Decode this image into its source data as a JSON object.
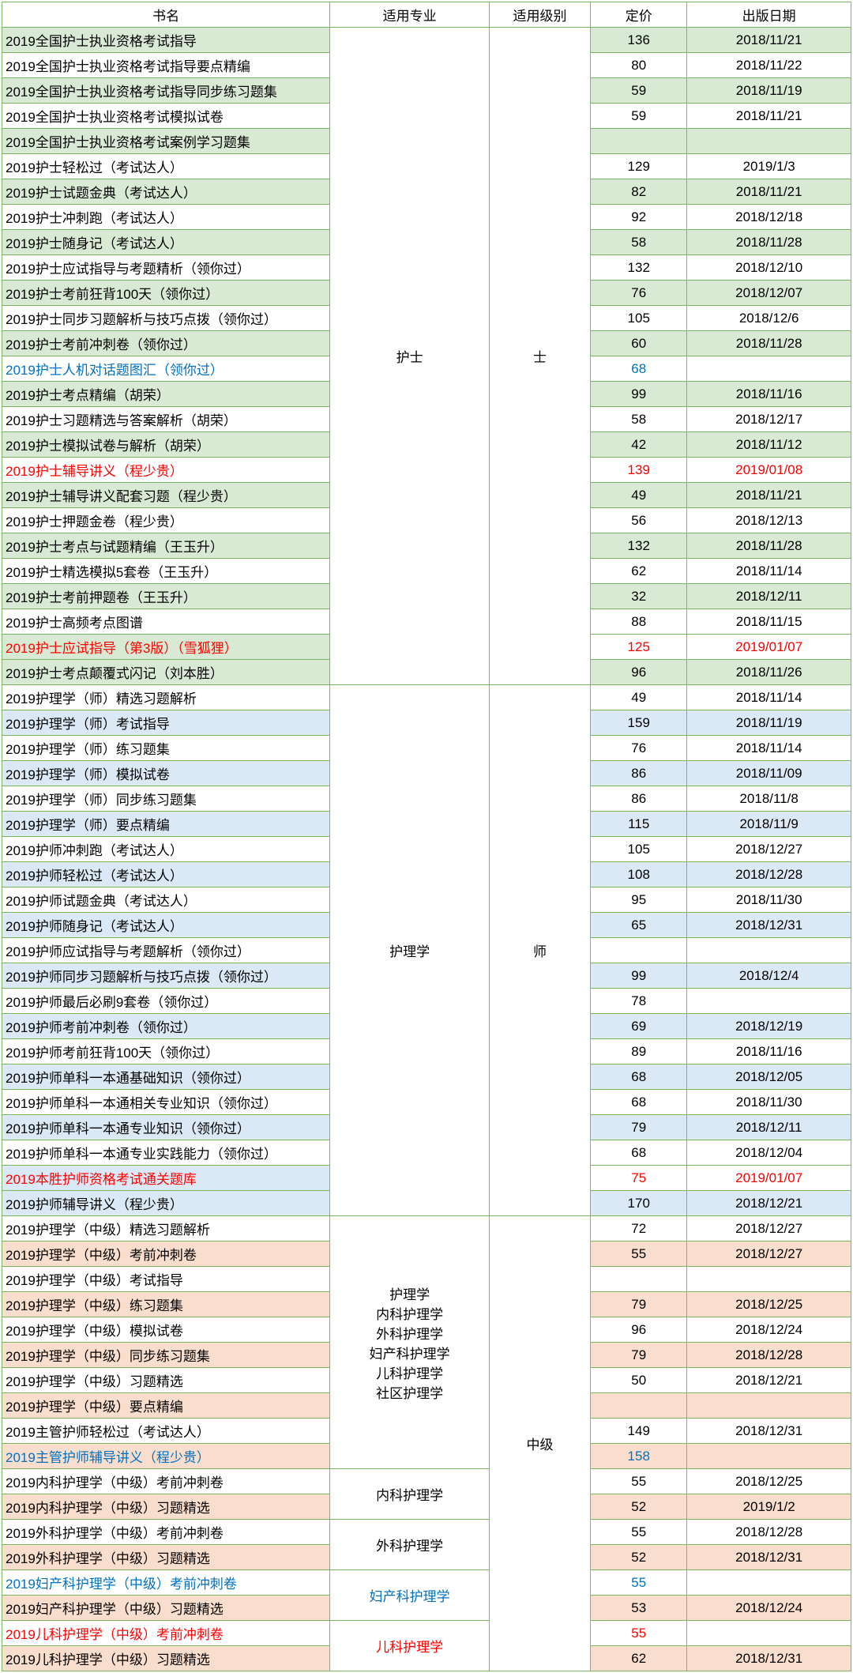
{
  "headers": {
    "name": "书名",
    "major": "适用专业",
    "level": "适用级别",
    "price": "定价",
    "date": "出版日期"
  },
  "colors": {
    "border": "#7eb762",
    "shade_green": "#d9ead4",
    "shade_blue": "#dbe9f6",
    "shade_orange": "#fadecd",
    "text_blue": "#0070c0",
    "text_red": "#ff0000"
  },
  "section1": {
    "major": "护士",
    "level": "士",
    "rows": [
      {
        "name": "2019全国护士执业资格考试指导",
        "price": "136",
        "date": "2018/11/21",
        "shade": true
      },
      {
        "name": "2019全国护士执业资格考试指导要点精编",
        "price": "80",
        "date": "2018/11/22"
      },
      {
        "name": "2019全国护士执业资格考试指导同步练习题集",
        "price": "59",
        "date": "2018/11/19",
        "shade": true
      },
      {
        "name": "2019全国护士执业资格考试模拟试卷",
        "price": "59",
        "date": "2018/11/21"
      },
      {
        "name": "2019全国护士执业资格考试案例学习题集",
        "price": "",
        "date": "",
        "shade": true
      },
      {
        "name": "2019护士轻松过（考试达人）",
        "price": "129",
        "date": "2019/1/3"
      },
      {
        "name": "2019护士试题金典（考试达人）",
        "price": "82",
        "date": "2018/11/21",
        "shade": true
      },
      {
        "name": "2019护士冲刺跑（考试达人）",
        "price": "92",
        "date": "2018/12/18"
      },
      {
        "name": "2019护士随身记（考试达人）",
        "price": "58",
        "date": "2018/11/28",
        "shade": true
      },
      {
        "name": "2019护士应试指导与考题精析（领你过）",
        "price": "132",
        "date": "2018/12/10"
      },
      {
        "name": "2019护士考前狂背100天（领你过）",
        "price": "76",
        "date": "2018/12/07",
        "shade": true
      },
      {
        "name": "2019护士同步习题解析与技巧点拨（领你过）",
        "price": "105",
        "date": "2018/12/6"
      },
      {
        "name": "2019护士考前冲刺卷（领你过）",
        "price": "60",
        "date": "2018/11/28",
        "shade": true
      },
      {
        "name": "2019护士人机对话题图汇（领你过）",
        "price": "68",
        "date": "",
        "color": "blue"
      },
      {
        "name": "2019护士考点精编（胡荣）",
        "price": "99",
        "date": "2018/11/16",
        "shade": true
      },
      {
        "name": "2019护士习题精选与答案解析（胡荣）",
        "price": "58",
        "date": "2018/12/17"
      },
      {
        "name": "2019护士模拟试卷与解析（胡荣）",
        "price": "42",
        "date": "2018/11/12",
        "shade": true
      },
      {
        "name": "2019护士辅导讲义（程少贵）",
        "price": "139",
        "date": "2019/01/08",
        "color": "red"
      },
      {
        "name": "2019护士辅导讲义配套习题（程少贵）",
        "price": "49",
        "date": "2018/11/21",
        "shade": true
      },
      {
        "name": "2019护士押题金卷（程少贵）",
        "price": "56",
        "date": "2018/12/13"
      },
      {
        "name": "2019护士考点与试题精编（王玉升）",
        "price": "132",
        "date": "2018/11/28",
        "shade": true
      },
      {
        "name": "2019护士精选模拟5套卷（王玉升）",
        "price": "62",
        "date": "2018/11/14"
      },
      {
        "name": "2019护士考前押题卷（王玉升）",
        "price": "32",
        "date": "2018/12/11",
        "shade": true
      },
      {
        "name": "2019护士高频考点图谱",
        "price": "88",
        "date": "2018/11/15"
      },
      {
        "name": "2019护士应试指导（第3版）（雪狐狸）",
        "price": "125",
        "date": "2019/01/07",
        "color": "red",
        "shadeBase": true
      },
      {
        "name": "2019护士考点颠覆式闪记（刘本胜）",
        "price": "96",
        "date": "2018/11/26",
        "shade": true
      }
    ]
  },
  "section2": {
    "major": "护理学",
    "level": "师",
    "rows": [
      {
        "name": "2019护理学（师）精选习题解析",
        "price": "49",
        "date": "2018/11/14"
      },
      {
        "name": "2019护理学（师）考试指导",
        "price": "159",
        "date": "2018/11/19",
        "shade": true
      },
      {
        "name": "2019护理学（师）练习题集",
        "price": "76",
        "date": "2018/11/14"
      },
      {
        "name": "2019护理学（师）模拟试卷",
        "price": "86",
        "date": "2018/11/09",
        "shade": true
      },
      {
        "name": "2019护理学（师）同步练习题集",
        "price": "86",
        "date": "2018/11/8"
      },
      {
        "name": "2019护理学（师）要点精编",
        "price": "115",
        "date": "2018/11/9",
        "shade": true
      },
      {
        "name": "2019护师冲刺跑（考试达人）",
        "price": "105",
        "date": "2018/12/27"
      },
      {
        "name": "2019护师轻松过（考试达人）",
        "price": "108",
        "date": "2018/12/28",
        "shade": true
      },
      {
        "name": "2019护师试题金典（考试达人）",
        "price": "95",
        "date": "2018/11/30"
      },
      {
        "name": "2019护师随身记（考试达人）",
        "price": "65",
        "date": "2018/12/31",
        "shade": true
      },
      {
        "name": "2019护师应试指导与考题解析（领你过）",
        "price": "",
        "date": ""
      },
      {
        "name": "2019护师同步习题解析与技巧点拨（领你过）",
        "price": "99",
        "date": "2018/12/4",
        "shade": true
      },
      {
        "name": "2019护师最后必刷9套卷（领你过）",
        "price": "78",
        "date": ""
      },
      {
        "name": "2019护师考前冲刺卷（领你过）",
        "price": "69",
        "date": "2018/12/19",
        "shade": true
      },
      {
        "name": "2019护师考前狂背100天（领你过）",
        "price": "89",
        "date": "2018/11/16"
      },
      {
        "name": "2019护师单科一本通基础知识（领你过）",
        "price": "68",
        "date": "2018/12/05",
        "shade": true
      },
      {
        "name": "2019护师单科一本通相关专业知识（领你过）",
        "price": "68",
        "date": "2018/11/30"
      },
      {
        "name": "2019护师单科一本通专业知识（领你过）",
        "price": "79",
        "date": "2018/12/11",
        "shade": true
      },
      {
        "name": "2019护师单科一本通专业实践能力（领你过）",
        "price": "68",
        "date": "2018/12/04"
      },
      {
        "name": "2019本胜护师资格考试通关题库",
        "price": "75",
        "date": "2019/01/07",
        "color": "red",
        "shadeBase": true
      },
      {
        "name": "2019护师辅导讲义（程少贵）",
        "price": "170",
        "date": "2018/12/21",
        "shade": true
      }
    ]
  },
  "section3": {
    "level": "中级",
    "groups": [
      {
        "majorLines": [
          "护理学",
          "内科护理学",
          "外科护理学",
          "妇产科护理学",
          "儿科护理学",
          "社区护理学"
        ],
        "rows": [
          {
            "name": "2019护理学（中级）精选习题解析",
            "price": "72",
            "date": "2018/12/27"
          },
          {
            "name": "2019护理学（中级）考前冲刺卷",
            "price": "55",
            "date": "2018/12/27",
            "shade": true
          },
          {
            "name": "2019护理学（中级）考试指导",
            "price": "",
            "date": ""
          },
          {
            "name": "2019护理学（中级）练习题集",
            "price": "79",
            "date": "2018/12/25",
            "shade": true
          },
          {
            "name": "2019护理学（中级）模拟试卷",
            "price": "96",
            "date": "2018/12/24"
          },
          {
            "name": "2019护理学（中级）同步练习题集",
            "price": "79",
            "date": "2018/12/28",
            "shade": true
          },
          {
            "name": "2019护理学（中级）习题精选",
            "price": "50",
            "date": "2018/12/21"
          },
          {
            "name": "2019护理学（中级）要点精编",
            "price": "",
            "date": "",
            "shade": true
          },
          {
            "name": "2019主管护师轻松过（考试达人）",
            "price": "149",
            "date": "2018/12/31"
          },
          {
            "name": "2019主管护师辅导讲义（程少贵）",
            "price": "158",
            "date": "",
            "shade": true,
            "color": "blue"
          }
        ]
      },
      {
        "major": "内科护理学",
        "rows": [
          {
            "name": "2019内科护理学（中级）考前冲刺卷",
            "price": "55",
            "date": "2018/12/25"
          },
          {
            "name": "2019内科护理学（中级）习题精选",
            "price": "52",
            "date": "2019/1/2",
            "shade": true
          }
        ]
      },
      {
        "major": "外科护理学",
        "rows": [
          {
            "name": "2019外科护理学（中级）考前冲刺卷",
            "price": "55",
            "date": "2018/12/28"
          },
          {
            "name": "2019外科护理学（中级）习题精选",
            "price": "52",
            "date": "2018/12/31",
            "shade": true
          }
        ]
      },
      {
        "major": "妇产科护理学",
        "majorColor": "blue",
        "rows": [
          {
            "name": "2019妇产科护理学（中级）考前冲刺卷",
            "price": "55",
            "date": "",
            "color": "blue"
          },
          {
            "name": "2019妇产科护理学（中级）习题精选",
            "price": "53",
            "date": "2018/12/24",
            "shade": true
          }
        ]
      },
      {
        "major": "儿科护理学",
        "majorColor": "red",
        "rows": [
          {
            "name": "2019儿科护理学（中级）考前冲刺卷",
            "price": "55",
            "date": "",
            "color": "red"
          },
          {
            "name": "2019儿科护理学（中级）习题精选",
            "price": "62",
            "date": "2018/12/31",
            "shade": true
          }
        ]
      }
    ]
  }
}
